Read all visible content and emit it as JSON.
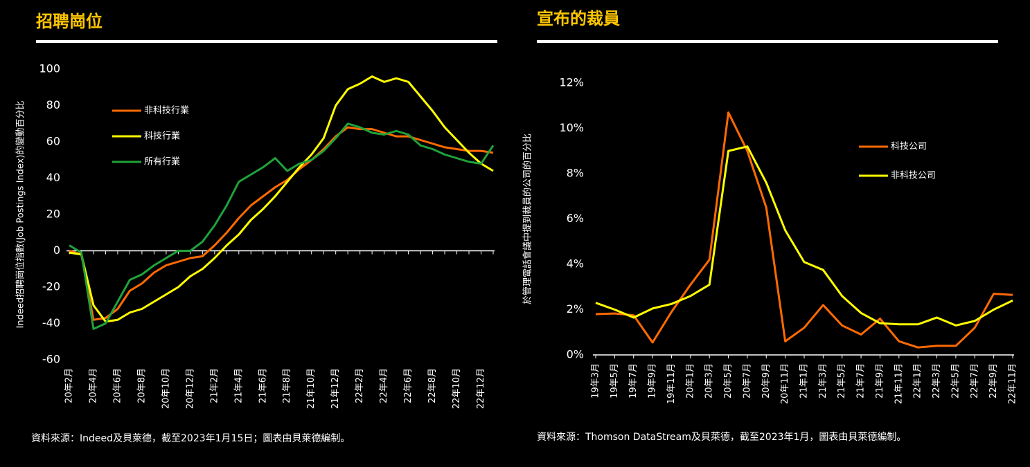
{
  "chart_data": [
    {
      "type": "line",
      "title": "招聘崗位",
      "ylabel": "Indeed招聘崗位指數(Job Postings Index)的變動百分比",
      "source": "資料來源：Indeed及貝萊德，截至2023年1月15日；圖表由貝萊德編制。",
      "categories": [
        "20年2月",
        null,
        "20年4月",
        null,
        "20年6月",
        null,
        "20年8月",
        null,
        "20年10月",
        null,
        "20年12月",
        null,
        "21年2月",
        null,
        "21年4月",
        null,
        "21年6月",
        null,
        "21年8月",
        null,
        "21年10月",
        null,
        "21年12月",
        null,
        "22年2月",
        null,
        "22年4月",
        null,
        "22年6月",
        null,
        "22年8月",
        null,
        "22年10月",
        null,
        "22年12月",
        null
      ],
      "series": [
        {
          "name": "非科技行業",
          "color": "#ff6a00",
          "values": [
            0,
            -2,
            -38,
            -37,
            -32,
            -22,
            -18,
            -12,
            -8,
            -6,
            -4,
            -3,
            3,
            10,
            18,
            25,
            30,
            35,
            39,
            45,
            50,
            56,
            63,
            68,
            67,
            67,
            65,
            63,
            63,
            61,
            59,
            57,
            56,
            55,
            55,
            54
          ]
        },
        {
          "name": "科技行業",
          "color": "#ffff00",
          "values": [
            -1,
            -2,
            -30,
            -39,
            -38,
            -34,
            -32,
            -28,
            -24,
            -20,
            -14,
            -10,
            -4,
            3,
            9,
            17,
            23,
            30,
            38,
            46,
            53,
            62,
            80,
            89,
            92,
            96,
            93,
            95,
            93,
            85,
            77,
            68,
            61,
            54,
            48,
            44
          ]
        },
        {
          "name": "所有行業",
          "color": "#1fa33a",
          "values": [
            3,
            -1,
            -43,
            -40,
            -28,
            -16,
            -13,
            -8,
            -4,
            0,
            0,
            5,
            14,
            25,
            38,
            42,
            46,
            51,
            44,
            48,
            50,
            55,
            62,
            70,
            68,
            65,
            64,
            66,
            64,
            58,
            56,
            53,
            51,
            49,
            48,
            58
          ]
        }
      ],
      "ylim": [
        -60,
        100
      ],
      "yticks": [
        -60,
        -40,
        -20,
        0,
        20,
        40,
        60,
        80,
        100
      ],
      "legend": "upper left"
    },
    {
      "type": "line",
      "title": "宣布的裁員",
      "ylabel": "於管理電話會議中提到裁員的公司的百分比",
      "source": "資料來源：Thomson DataStream及貝萊德，截至2023年1月，圖表由貝萊德編制。",
      "categories": [
        "19年3月",
        "19年5月",
        "19年7月",
        "19年9月",
        "19年11月",
        "20年1月",
        "20年3月",
        "20年5月",
        "20年7月",
        "20年9月",
        "20年11月",
        "21年1月",
        "21年3月",
        "21年5月",
        "21年7月",
        "21年9月",
        "21年11月",
        "22年1月",
        "22年3月",
        "22年5月",
        "22年7月",
        "22年9月",
        "22年11月"
      ],
      "series": [
        {
          "name": "科技公司",
          "color": "#ff6a00",
          "values": [
            1.8,
            1.83,
            1.75,
            0.55,
            1.9,
            3.1,
            4.2,
            10.7,
            9.0,
            6.5,
            0.6,
            1.2,
            2.2,
            1.3,
            0.9,
            1.6,
            0.6,
            0.33,
            0.4,
            0.4,
            1.2,
            2.7,
            2.65
          ]
        },
        {
          "name": "非科技公司",
          "color": "#ffff00",
          "values": [
            2.3,
            2.0,
            1.65,
            2.05,
            2.25,
            2.6,
            3.1,
            9.0,
            9.2,
            7.6,
            5.5,
            4.1,
            3.75,
            2.6,
            1.85,
            1.4,
            1.35,
            1.35,
            1.65,
            1.3,
            1.5,
            2.0,
            2.4
          ]
        }
      ],
      "ylim": [
        0,
        12
      ],
      "yticks": [
        {
          "value": 0,
          "label": "0%"
        },
        {
          "value": 2,
          "label": "2%"
        },
        {
          "value": 4,
          "label": "4%"
        },
        {
          "value": 6,
          "label": "6%"
        },
        {
          "value": 8,
          "label": "8%"
        },
        {
          "value": 10,
          "label": "10%"
        },
        {
          "value": 12,
          "label": "12%"
        }
      ],
      "legend": "upper right"
    }
  ]
}
